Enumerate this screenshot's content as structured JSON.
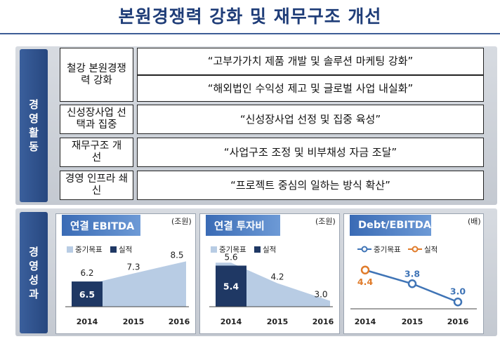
{
  "title": "본원경쟁력 강화 및 재무구조 개선",
  "activities": {
    "label": "경영활동",
    "rows": [
      {
        "category": "철강 본원경쟁력 강화",
        "statements": [
          "“고부가가치 제품 개발 및 솔루션 마케팅 강화”",
          "“해외법인 수익성 제고 및 글로벌 사업 내실화”"
        ]
      },
      {
        "category": "신성장사업 선택과 집중",
        "statements": [
          "“신성장사업 선정 및 집중 육성”"
        ]
      },
      {
        "category": "재무구조 개선",
        "statements": [
          "“사업구조 조정 및 비부채성 자금 조달”"
        ]
      },
      {
        "category": "경영 인프라 쇄신",
        "statements": [
          "“프로젝트 중심의 일하는 방식 확산”"
        ]
      }
    ]
  },
  "performance": {
    "label": "경영성과"
  },
  "chart_data": [
    {
      "type": "bar",
      "title": "연결 EBITDA",
      "unit": "(조원)",
      "categories": [
        "2014",
        "2015",
        "2016"
      ],
      "legend": [
        "중기목표",
        "실적"
      ],
      "series": [
        {
          "name": "중기목표",
          "values": [
            6.2,
            7.3,
            8.5
          ],
          "color": "#b8cce4"
        },
        {
          "name": "실적",
          "values": [
            6.5,
            null,
            null
          ],
          "color": "#1f3864"
        }
      ]
    },
    {
      "type": "bar",
      "title": "연결 투자비",
      "unit": "(조원)",
      "categories": [
        "2014",
        "2015",
        "2016"
      ],
      "legend": [
        "중기목표",
        "실적"
      ],
      "series": [
        {
          "name": "중기목표",
          "values": [
            5.6,
            4.2,
            3.0
          ],
          "color": "#b8cce4"
        },
        {
          "name": "실적",
          "values": [
            5.4,
            null,
            null
          ],
          "color": "#1f3864"
        }
      ]
    },
    {
      "type": "line",
      "title": "Debt/EBITDA",
      "unit": "(배)",
      "categories": [
        "2014",
        "2015",
        "2016"
      ],
      "legend": [
        "중기목표",
        "실적"
      ],
      "series": [
        {
          "name": "중기목표",
          "values": [
            4.4,
            3.8,
            3.0
          ],
          "color": "#3f74b6"
        },
        {
          "name": "실적",
          "values": [
            4.4,
            null,
            null
          ],
          "color": "#e07b2a"
        }
      ]
    }
  ]
}
